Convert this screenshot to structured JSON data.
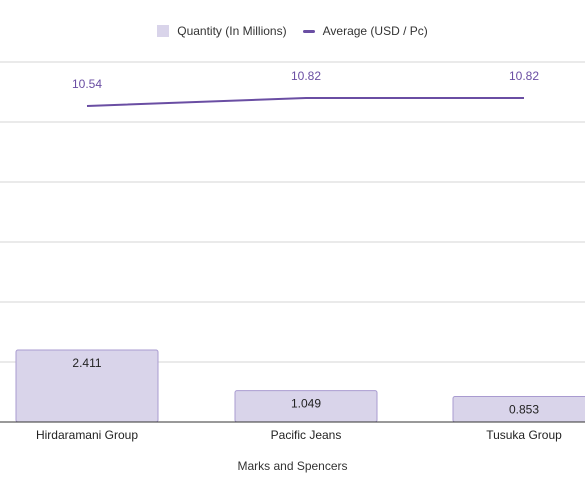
{
  "chart_data": {
    "type": "bar",
    "categories": [
      "Hirdaramani Group",
      "Pacific Jeans",
      "Tusuka Group"
    ],
    "xlabel": "Marks and Spencers",
    "series": [
      {
        "name": "Quantity (In Millions)",
        "kind": "bar",
        "values": [
          2.411,
          1.049,
          0.853
        ],
        "data_labels": [
          "2.411",
          "1.049",
          "0.853"
        ]
      },
      {
        "name": "Average (USD / Pc)",
        "kind": "line",
        "values": [
          10.54,
          10.82,
          10.82
        ],
        "data_labels": [
          "10.54",
          "10.82",
          "10.82"
        ]
      }
    ],
    "grid": true,
    "legend": "top"
  },
  "colors": {
    "bar": "#d9d4ea",
    "bar_stroke": "#a99bd0",
    "line": "#6a4ea3",
    "grid": "#d6d6d6",
    "axis": "#333333",
    "label_line": "#6a4ea3"
  }
}
